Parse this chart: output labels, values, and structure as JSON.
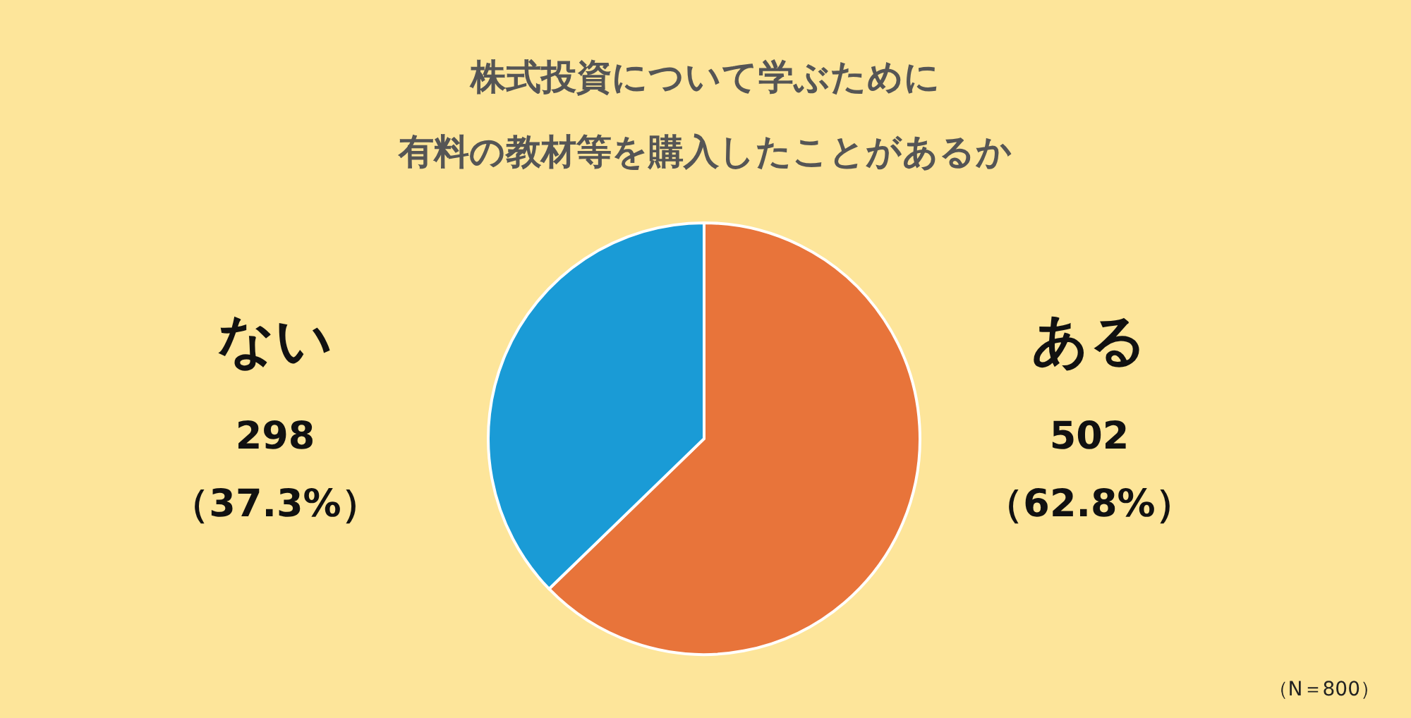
{
  "chart_data": {
    "type": "pie",
    "title": "株式投資について学ぶために",
    "subtitle": "有料の教材等を購入したことがあるか",
    "categories": [
      "ある",
      "ない"
    ],
    "values": [
      502,
      298
    ],
    "colors": [
      "#e8743a",
      "#1a9bd6"
    ],
    "value_labels": [
      "502\n（62.8%）",
      "298\n（37.3%）"
    ],
    "annotations": [
      "（N＝800）"
    ]
  }
}
